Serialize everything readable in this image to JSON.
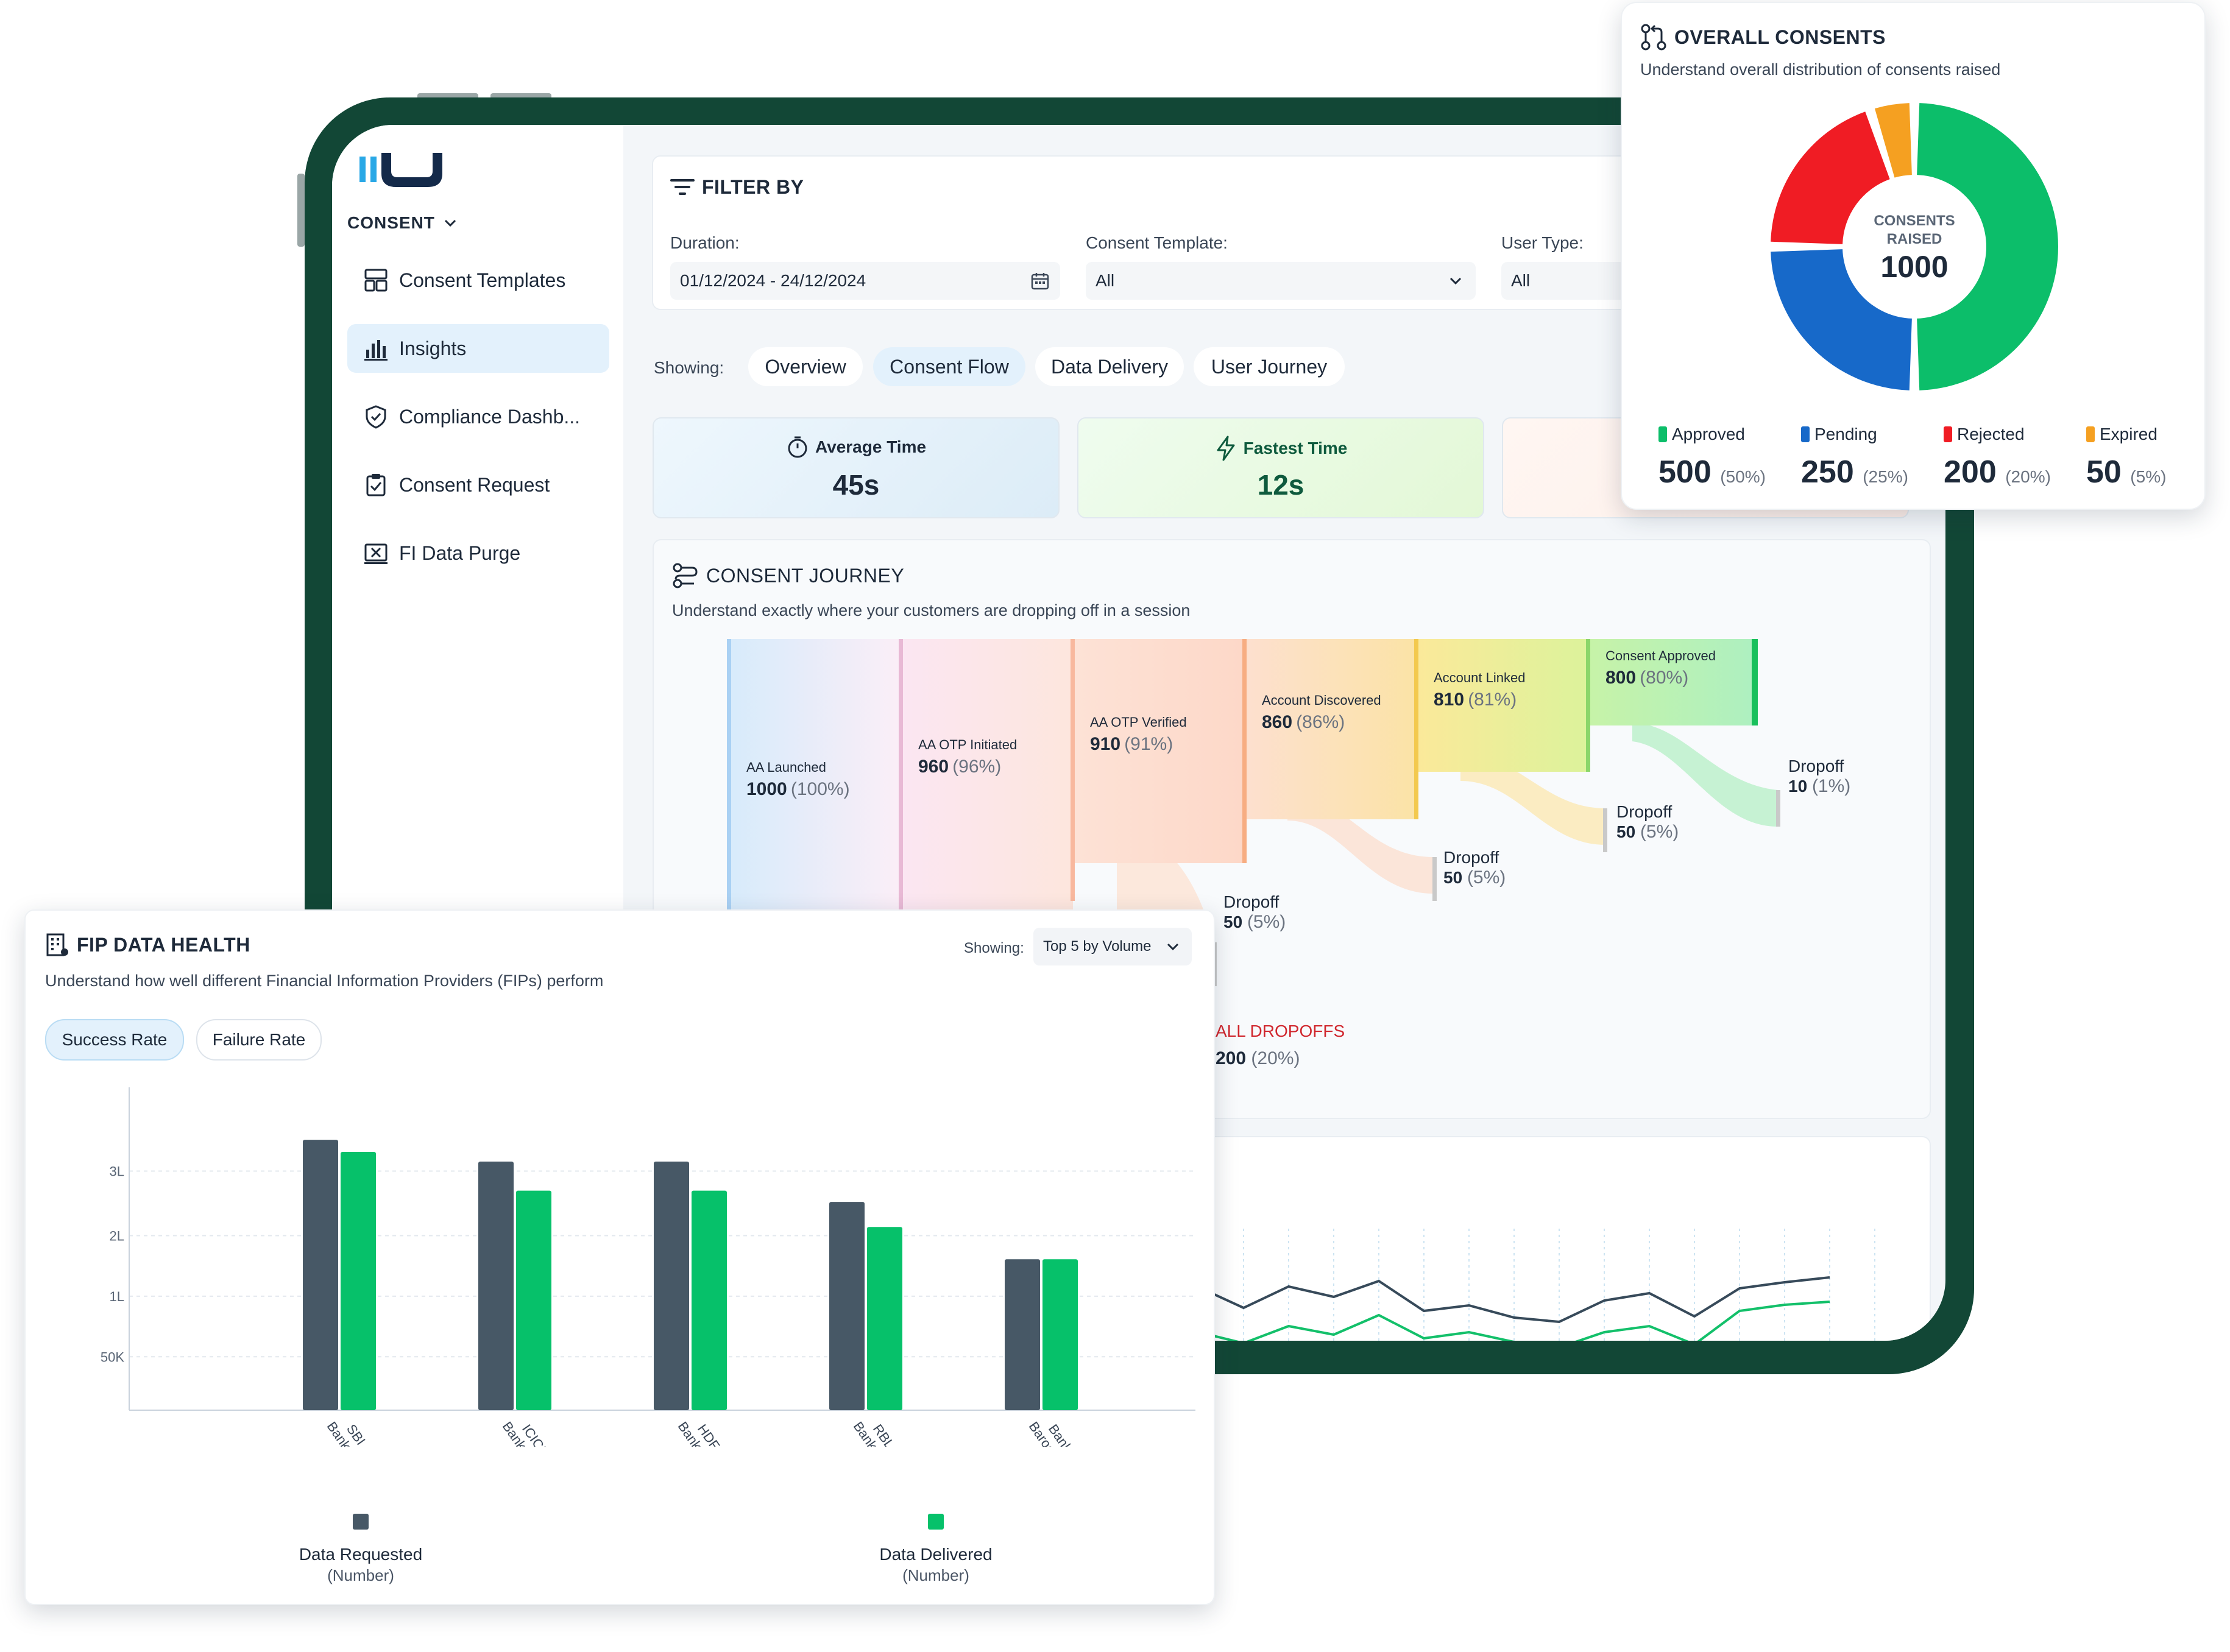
{
  "sidebar": {
    "section": "CONSENT",
    "items": [
      {
        "label": "Consent Templates",
        "icon": "layout-icon"
      },
      {
        "label": "Insights",
        "icon": "bar-chart-icon",
        "active": true
      },
      {
        "label": "Compliance Dashb...",
        "icon": "shield-icon"
      },
      {
        "label": "Consent Request",
        "icon": "clipboard-check-icon"
      },
      {
        "label": "FI Data Purge",
        "icon": "purge-icon"
      }
    ]
  },
  "filter": {
    "title": "FILTER BY",
    "duration_label": "Duration:",
    "duration_value": "01/12/2024 - 24/12/2024",
    "template_label": "Consent Template:",
    "template_value": "All",
    "usertype_label": "User Type:",
    "usertype_value": "All"
  },
  "showing": {
    "label": "Showing:",
    "tabs": [
      "Overview",
      "Consent Flow",
      "Data Delivery",
      "User Journey"
    ],
    "active": "Consent Flow"
  },
  "metrics": [
    {
      "title": "Average Time",
      "value": "45s"
    },
    {
      "title": "Fastest Time",
      "value": "12s"
    }
  ],
  "journey": {
    "title": "CONSENT JOURNEY",
    "subtitle": "Understand exactly where your customers are dropping off in a session",
    "stages": [
      {
        "name": "AA Launched",
        "value": "1000",
        "pct": "(100%)"
      },
      {
        "name": "AA OTP Initiated",
        "value": "960",
        "pct": "(96%)"
      },
      {
        "name": "AA OTP Verified",
        "value": "910",
        "pct": "(91%)"
      },
      {
        "name": "Account Discovered",
        "value": "860",
        "pct": "(86%)"
      },
      {
        "name": "Account Linked",
        "value": "810",
        "pct": "(81%)"
      },
      {
        "name": "Consent Approved",
        "value": "800",
        "pct": "(80%)"
      }
    ],
    "dropoffs": [
      {
        "label": "Dropoff",
        "value": "50",
        "pct": "(5%)"
      },
      {
        "label": "Dropoff",
        "value": "50",
        "pct": "(5%)"
      },
      {
        "label": "Dropoff",
        "value": "50",
        "pct": "(5%)"
      },
      {
        "label": "Dropoff",
        "value": "10",
        "pct": "(1%)"
      }
    ],
    "all_dropoffs_label": "ALL DROPOFFS",
    "all_dropoffs_value": "200",
    "all_dropoffs_pct": "(20%)"
  },
  "overall": {
    "title": "OVERALL CONSENTS",
    "subtitle": "Understand overall distribution of consents raised",
    "center_label_1": "CONSENTS",
    "center_label_2": "RAISED",
    "center_value": "1000",
    "colors": {
      "approved": "#0cbe6a",
      "pending": "#1769c9",
      "rejected": "#f01c24",
      "expired": "#f5a021"
    },
    "legend": [
      {
        "label": "Approved",
        "value": "500",
        "pct": "(50%)"
      },
      {
        "label": "Pending",
        "value": "250",
        "pct": "(25%)"
      },
      {
        "label": "Rejected",
        "value": "200",
        "pct": "(20%)"
      },
      {
        "label": "Expired",
        "value": "50",
        "pct": "(5%)"
      }
    ]
  },
  "fip": {
    "title": "FIP DATA HEALTH",
    "subtitle": "Understand how well different Financial Information Providers (FIPs) perform",
    "showing_label": "Showing:",
    "showing_value": "Top 5 by Volume",
    "pills": [
      "Success Rate",
      "Failure Rate"
    ],
    "legend": [
      {
        "label": "Data Requested",
        "unit": "(Number)"
      },
      {
        "label": "Data Delivered",
        "unit": "(Number)"
      }
    ]
  },
  "chart_data": {
    "type": "bar",
    "categories": [
      "SBI Bank",
      "ICICI Bank",
      "HDFC Bank",
      "RBL Bank",
      "Bank of Baroda"
    ],
    "series": [
      {
        "name": "Data Requested (Number)",
        "values": [
          335000,
          308000,
          308000,
          258000,
          187000
        ],
        "color": "#475866"
      },
      {
        "name": "Data Delivered (Number)",
        "values": [
          320000,
          272000,
          272000,
          227000,
          187000
        ],
        "color": "#06c16a"
      }
    ],
    "yticks": [
      "50K",
      "1L",
      "2L",
      "3L"
    ],
    "ylim": [
      0,
      400000
    ],
    "grid": true,
    "legend": "bottom"
  }
}
